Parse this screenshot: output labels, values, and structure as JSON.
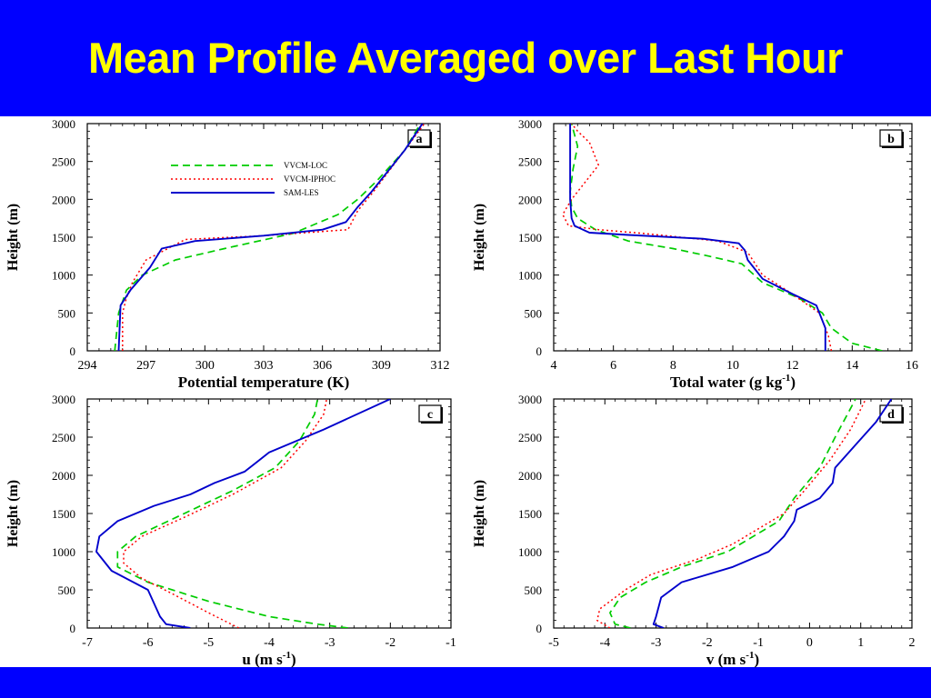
{
  "slide": {
    "title": "Mean Profile Averaged over Last Hour",
    "colors": {
      "bar": "#0000ff",
      "title": "#ffff00",
      "background": "#ffffff"
    }
  },
  "legend": {
    "placement": "top-center of panel a",
    "entries": [
      {
        "label": "VVCM-LOC",
        "color": "#00cc00",
        "style": "dashed"
      },
      {
        "label": "VVCM-IPHOC",
        "color": "#ff0000",
        "style": "dotted"
      },
      {
        "label": "SAM-LES",
        "color": "#0000cc",
        "style": "solid"
      }
    ]
  },
  "chart_data": [
    {
      "panel": "a",
      "type": "line",
      "xlabel": "Potential temperature (K)",
      "ylabel": "Height (m)",
      "xlim": [
        294,
        312
      ],
      "ylim": [
        0,
        3000
      ],
      "xticks": [
        "294",
        "297",
        "300",
        "303",
        "306",
        "309",
        "312"
      ],
      "yticks": [
        "0",
        "500",
        "1000",
        "1500",
        "2000",
        "2500",
        "3000"
      ],
      "series": [
        {
          "name": "VVCM-LOC",
          "x": [
            295.4,
            295.6,
            296.0,
            296.8,
            298.5,
            301.0,
            304.5,
            306.8,
            307.8,
            308.8,
            310.2,
            311.0
          ],
          "y": [
            0,
            500,
            800,
            1000,
            1200,
            1350,
            1550,
            1800,
            2000,
            2250,
            2650,
            3000
          ]
        },
        {
          "name": "VVCM-IPHOC",
          "x": [
            295.8,
            295.8,
            296.0,
            296.3,
            297.0,
            299.0,
            303.0,
            307.3,
            307.8,
            308.6,
            310.2,
            311.2
          ],
          "y": [
            0,
            500,
            700,
            900,
            1200,
            1470,
            1520,
            1600,
            1850,
            2100,
            2650,
            3000
          ]
        },
        {
          "name": "SAM-LES",
          "x": [
            295.6,
            295.7,
            296.2,
            297.2,
            297.8,
            299.5,
            303.0,
            306.0,
            307.2,
            307.8,
            308.5,
            310.2,
            311.1
          ],
          "y": [
            0,
            600,
            800,
            1100,
            1350,
            1450,
            1520,
            1600,
            1700,
            1900,
            2100,
            2650,
            3000
          ]
        }
      ]
    },
    {
      "panel": "b",
      "type": "line",
      "xlabel": "Total water (g kg",
      "xlabel_sup": "-1",
      "xlabel_end": ")",
      "ylabel": "Height (m)",
      "xlim": [
        4,
        16
      ],
      "ylim": [
        0,
        3000
      ],
      "xticks": [
        "4",
        "6",
        "8",
        "10",
        "12",
        "14",
        "16"
      ],
      "yticks": [
        "0",
        "500",
        "1000",
        "1500",
        "2000",
        "2500",
        "3000"
      ],
      "series": [
        {
          "name": "VVCM-LOC",
          "x": [
            15.0,
            14.0,
            13.3,
            13.0,
            12.2,
            11.0,
            10.3,
            9.2,
            8.0,
            6.5,
            5.4,
            4.8,
            4.6,
            4.55,
            4.65,
            4.8,
            4.6
          ],
          "y": [
            0,
            100,
            300,
            500,
            700,
            900,
            1150,
            1250,
            1350,
            1450,
            1600,
            1750,
            1900,
            2100,
            2400,
            2700,
            3000
          ]
        },
        {
          "name": "VVCM-IPHOC",
          "x": [
            13.3,
            13.2,
            12.9,
            11.8,
            11.0,
            10.5,
            9.5,
            7.0,
            5.5,
            4.5,
            4.3,
            4.6,
            5.0,
            5.5,
            5.2,
            4.8,
            4.6
          ],
          "y": [
            0,
            200,
            500,
            800,
            1000,
            1300,
            1450,
            1550,
            1600,
            1650,
            1800,
            2000,
            2200,
            2450,
            2750,
            2900,
            3000
          ]
        },
        {
          "name": "SAM-LES",
          "x": [
            13.1,
            13.1,
            12.8,
            12.0,
            11.0,
            10.5,
            10.4,
            10.2,
            9.0,
            6.5,
            5.2,
            4.7,
            4.6,
            4.55,
            4.55
          ],
          "y": [
            0,
            300,
            600,
            750,
            950,
            1200,
            1330,
            1420,
            1480,
            1530,
            1560,
            1650,
            1750,
            2000,
            3000
          ]
        }
      ]
    },
    {
      "panel": "c",
      "type": "line",
      "xlabel": "u (m s",
      "xlabel_sup": "-1",
      "xlabel_end": ")",
      "ylabel": "Height (m)",
      "xlim": [
        -7,
        -1
      ],
      "ylim": [
        0,
        3000
      ],
      "xticks": [
        "-7",
        "-6",
        "-5",
        "-4",
        "-3",
        "-2",
        "-1"
      ],
      "yticks": [
        "0",
        "500",
        "1000",
        "1500",
        "2000",
        "2500",
        "3000"
      ],
      "series": [
        {
          "name": "VVCM-LOC",
          "x": [
            -2.7,
            -3.2,
            -4.0,
            -5.0,
            -6.0,
            -6.5,
            -6.5,
            -6.2,
            -5.4,
            -4.6,
            -3.9,
            -3.5,
            -3.25,
            -3.2
          ],
          "y": [
            0,
            50,
            150,
            350,
            600,
            800,
            1000,
            1200,
            1500,
            1800,
            2100,
            2450,
            2800,
            3000
          ]
        },
        {
          "name": "VVCM-IPHOC",
          "x": [
            -4.5,
            -5.0,
            -5.6,
            -6.1,
            -6.4,
            -6.4,
            -6.1,
            -5.4,
            -4.6,
            -3.8,
            -3.4,
            -3.1,
            -3.05
          ],
          "y": [
            0,
            200,
            450,
            650,
            850,
            1000,
            1200,
            1450,
            1750,
            2100,
            2450,
            2800,
            3000
          ]
        },
        {
          "name": "SAM-LES",
          "x": [
            -5.3,
            -5.7,
            -5.8,
            -6.0,
            -6.6,
            -6.85,
            -6.8,
            -6.5,
            -6.2,
            -5.9,
            -5.3,
            -4.9,
            -4.4,
            -4.0,
            -3.1,
            -2.0
          ],
          "y": [
            0,
            50,
            150,
            500,
            750,
            1000,
            1200,
            1400,
            1500,
            1600,
            1750,
            1900,
            2050,
            2300,
            2600,
            3000
          ]
        }
      ]
    },
    {
      "panel": "d",
      "type": "line",
      "xlabel": "v (m s",
      "xlabel_sup": "-1",
      "xlabel_end": ")",
      "ylabel": "Height (m)",
      "xlim": [
        -5,
        2
      ],
      "ylim": [
        0,
        3000
      ],
      "xticks": [
        "-5",
        "-4",
        "-3",
        "-2",
        "-1",
        "0",
        "1",
        "2"
      ],
      "yticks": [
        "0",
        "500",
        "1000",
        "1500",
        "2000",
        "2500",
        "3000"
      ],
      "series": [
        {
          "name": "VVCM-LOC",
          "x": [
            -3.5,
            -3.8,
            -3.9,
            -3.7,
            -3.2,
            -2.5,
            -1.6,
            -1.1,
            -0.6,
            -0.3,
            0.2,
            0.5,
            0.9
          ],
          "y": [
            0,
            50,
            200,
            400,
            600,
            800,
            1000,
            1200,
            1400,
            1700,
            2100,
            2500,
            3000
          ]
        },
        {
          "name": "VVCM-IPHOC",
          "x": [
            -3.9,
            -4.15,
            -4.1,
            -3.6,
            -3.1,
            -2.2,
            -1.5,
            -1.0,
            -0.5,
            -0.1,
            0.4,
            0.8,
            1.1
          ],
          "y": [
            0,
            100,
            250,
            500,
            700,
            900,
            1100,
            1300,
            1500,
            1800,
            2200,
            2600,
            3000
          ]
        },
        {
          "name": "SAM-LES",
          "x": [
            -2.85,
            -3.05,
            -3.0,
            -2.9,
            -2.5,
            -1.5,
            -0.8,
            -0.5,
            -0.3,
            -0.25,
            0.2,
            0.45,
            0.5,
            0.9,
            1.3,
            1.6
          ],
          "y": [
            0,
            50,
            150,
            400,
            600,
            800,
            1000,
            1200,
            1400,
            1550,
            1700,
            1900,
            2100,
            2400,
            2700,
            3000
          ]
        }
      ]
    }
  ]
}
